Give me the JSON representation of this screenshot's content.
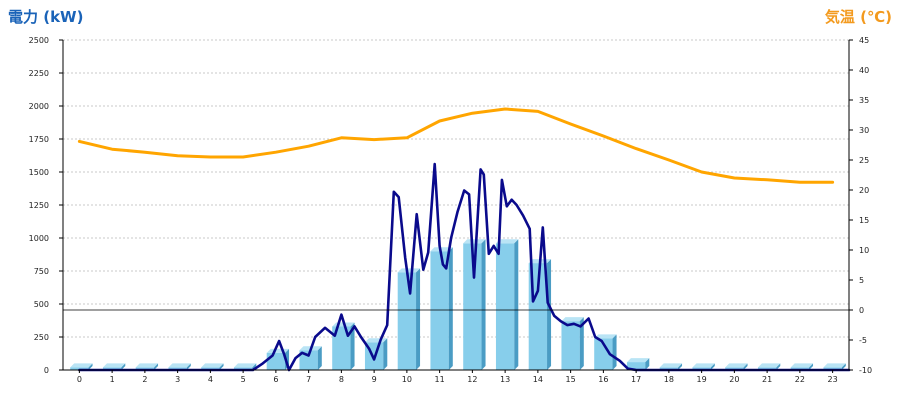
{
  "chart_data": {
    "type": "bar",
    "left_axis_title": "電力 (kW)",
    "right_axis_title": "気温 (℃)",
    "y_left": {
      "min": 0,
      "max": 2500,
      "ticks": [
        0,
        250,
        500,
        750,
        1000,
        1250,
        1500,
        1750,
        2000,
        2250,
        2500
      ]
    },
    "y_right": {
      "min": -10,
      "max": 45,
      "ticks": [
        -10,
        -5,
        0,
        5,
        10,
        15,
        20,
        25,
        30,
        35,
        40,
        45
      ]
    },
    "x_hours": [
      "0",
      "1",
      "2",
      "3",
      "4",
      "5",
      "6",
      "7",
      "8",
      "9",
      "10",
      "11",
      "12",
      "13",
      "14",
      "15",
      "16",
      "17",
      "18",
      "19",
      "20",
      "21",
      "22",
      "23"
    ],
    "grid": true,
    "colors": {
      "bar_front": "#87ceeb",
      "bar_side": "#4a9cc4",
      "bar_top": "#b9e4f5",
      "power_line": "#0a0a8c",
      "temperature_line": "#ffa500",
      "left_title": "#1a63b8",
      "right_title": "#f39a1e"
    },
    "series": [
      {
        "type": "bar",
        "axis": "left",
        "values": [
          20,
          20,
          20,
          20,
          20,
          20,
          130,
          150,
          330,
          210,
          740,
          900,
          960,
          960,
          810,
          370,
          240,
          60,
          20,
          20,
          20,
          20,
          20,
          20
        ]
      },
      {
        "type": "line",
        "axis": "left",
        "points": [
          [
            0,
            0
          ],
          [
            1,
            0
          ],
          [
            2,
            0
          ],
          [
            3,
            0
          ],
          [
            4,
            0
          ],
          [
            5,
            0
          ],
          [
            5.3,
            0
          ],
          [
            5.6,
            50
          ],
          [
            5.9,
            110
          ],
          [
            6.1,
            220
          ],
          [
            6.25,
            120
          ],
          [
            6.4,
            0
          ],
          [
            6.6,
            90
          ],
          [
            6.8,
            130
          ],
          [
            7.0,
            110
          ],
          [
            7.2,
            250
          ],
          [
            7.5,
            320
          ],
          [
            7.8,
            260
          ],
          [
            8.0,
            420
          ],
          [
            8.2,
            260
          ],
          [
            8.4,
            330
          ],
          [
            8.6,
            250
          ],
          [
            8.85,
            160
          ],
          [
            9.0,
            80
          ],
          [
            9.2,
            230
          ],
          [
            9.4,
            340
          ],
          [
            9.6,
            1350
          ],
          [
            9.75,
            1310
          ],
          [
            9.95,
            850
          ],
          [
            10.1,
            580
          ],
          [
            10.3,
            1180
          ],
          [
            10.5,
            760
          ],
          [
            10.65,
            890
          ],
          [
            10.85,
            1560
          ],
          [
            11.0,
            940
          ],
          [
            11.1,
            800
          ],
          [
            11.2,
            770
          ],
          [
            11.35,
            1000
          ],
          [
            11.55,
            1200
          ],
          [
            11.75,
            1360
          ],
          [
            11.9,
            1330
          ],
          [
            12.05,
            700
          ],
          [
            12.25,
            1520
          ],
          [
            12.35,
            1480
          ],
          [
            12.5,
            880
          ],
          [
            12.65,
            940
          ],
          [
            12.8,
            880
          ],
          [
            12.9,
            1440
          ],
          [
            13.05,
            1240
          ],
          [
            13.2,
            1290
          ],
          [
            13.35,
            1250
          ],
          [
            13.55,
            1170
          ],
          [
            13.75,
            1070
          ],
          [
            13.85,
            520
          ],
          [
            14.0,
            600
          ],
          [
            14.15,
            1080
          ],
          [
            14.3,
            510
          ],
          [
            14.5,
            410
          ],
          [
            14.7,
            370
          ],
          [
            14.9,
            340
          ],
          [
            15.1,
            350
          ],
          [
            15.3,
            330
          ],
          [
            15.55,
            390
          ],
          [
            15.75,
            250
          ],
          [
            15.95,
            220
          ],
          [
            16.2,
            120
          ],
          [
            16.5,
            70
          ],
          [
            16.75,
            10
          ],
          [
            17.0,
            0
          ],
          [
            18,
            0
          ],
          [
            19,
            0
          ],
          [
            20,
            0
          ],
          [
            21,
            0
          ],
          [
            22,
            0
          ],
          [
            23,
            0
          ],
          [
            23.5,
            0
          ]
        ]
      },
      {
        "type": "line",
        "axis": "right",
        "points": [
          [
            0,
            28.1
          ],
          [
            1,
            26.8
          ],
          [
            2,
            26.3
          ],
          [
            3,
            25.7
          ],
          [
            4,
            25.5
          ],
          [
            5,
            25.5
          ],
          [
            6,
            26.3
          ],
          [
            7,
            27.3
          ],
          [
            8,
            28.7
          ],
          [
            9,
            28.4
          ],
          [
            10,
            28.7
          ],
          [
            11,
            31.5
          ],
          [
            12,
            32.8
          ],
          [
            13,
            33.5
          ],
          [
            14,
            33.1
          ],
          [
            15,
            31.0
          ],
          [
            16,
            29.0
          ],
          [
            17,
            26.9
          ],
          [
            18,
            25.0
          ],
          [
            19,
            23.0
          ],
          [
            20,
            22.0
          ],
          [
            21,
            21.7
          ],
          [
            22,
            21.3
          ],
          [
            23,
            21.3
          ]
        ]
      }
    ]
  }
}
